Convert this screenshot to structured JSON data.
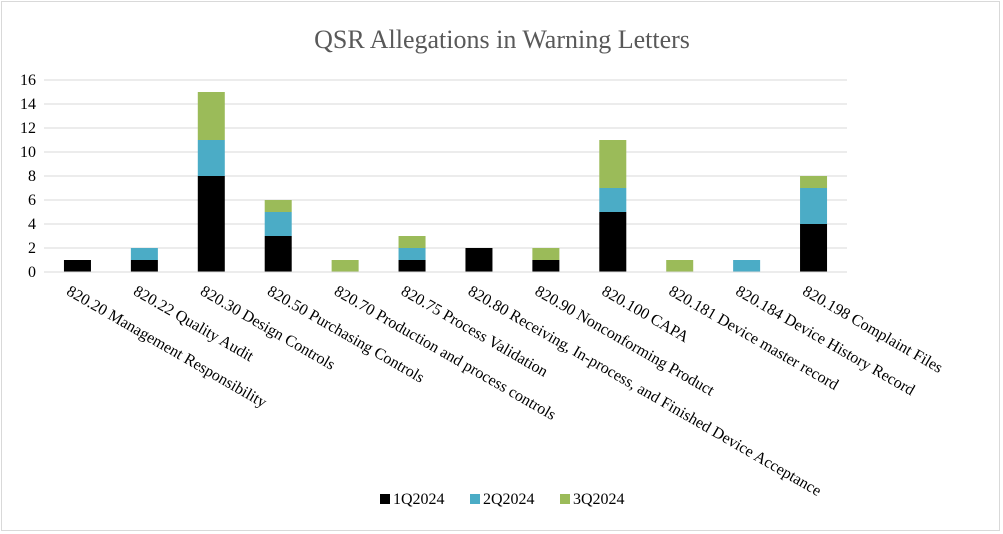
{
  "chart_data": {
    "type": "bar",
    "stacked": true,
    "title": "QSR Allegations in Warning Letters",
    "xlabel": "",
    "ylabel": "",
    "ylim": [
      0,
      16
    ],
    "yticks": [
      0,
      2,
      4,
      6,
      8,
      10,
      12,
      14,
      16
    ],
    "grid": true,
    "legend_position": "bottom",
    "categories": [
      "820.20 Management Responsibility",
      "820.22 Quality Audit",
      "820.30 Design Controls",
      "820.50 Purchasing Controls",
      "820.70 Production and process controls",
      "820.75 Process Validation",
      "820.80 Receiving, In-process, and Finished Device Acceptance",
      "820.90 Nonconforming Product",
      "820.100 CAPA",
      "820.181 Device master record",
      "820.184 Device History Record",
      "820.198 Complaint Files"
    ],
    "series": [
      {
        "name": "1Q2024",
        "color": "#000000",
        "values": [
          1,
          1,
          8,
          3,
          0,
          1,
          2,
          1,
          5,
          0,
          0,
          4
        ]
      },
      {
        "name": "2Q2024",
        "color": "#4bacc6",
        "values": [
          0,
          1,
          3,
          2,
          0,
          1,
          0,
          0,
          2,
          0,
          1,
          3
        ]
      },
      {
        "name": "3Q2024",
        "color": "#9bbb59",
        "values": [
          0,
          0,
          4,
          1,
          1,
          1,
          0,
          1,
          4,
          1,
          0,
          1
        ]
      }
    ]
  }
}
